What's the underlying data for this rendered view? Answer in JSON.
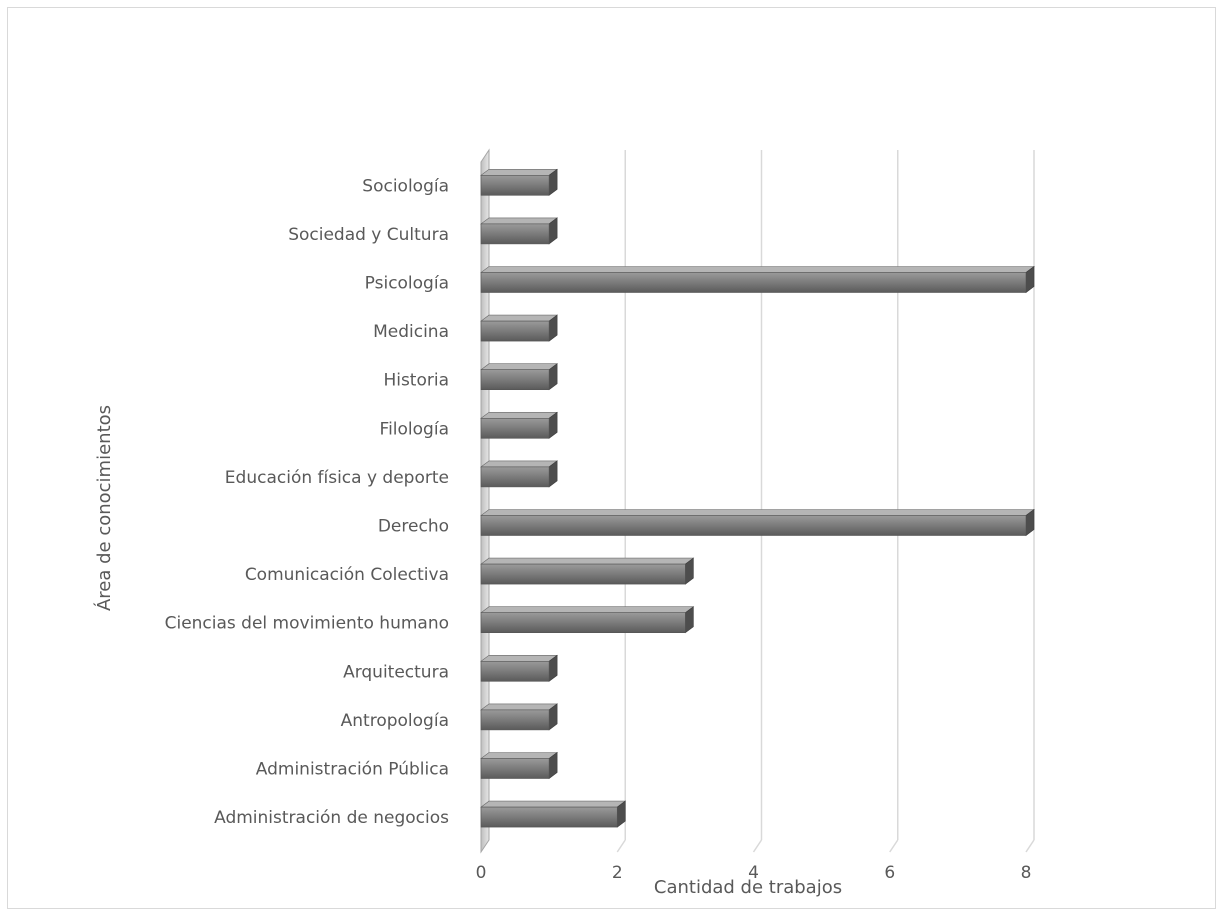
{
  "chart_data": {
    "type": "bar",
    "orientation": "horizontal",
    "style": "3d",
    "categories": [
      "Administración de negocios",
      "Administración Pública",
      "Antropología",
      "Arquitectura",
      "Ciencias del movimiento humano",
      "Comunicación Colectiva",
      "Derecho",
      "Educación física y deporte",
      "Filología",
      "Historia",
      "Medicina",
      "Psicología",
      "Sociedad y Cultura",
      "Sociología"
    ],
    "values": [
      2,
      1,
      1,
      1,
      3,
      3,
      8,
      1,
      1,
      1,
      1,
      8,
      1,
      1
    ],
    "xlabel": "Cantidad de trabajos",
    "ylabel": "Área de conocimientos",
    "xlim": [
      0,
      8
    ],
    "xticks": [
      "0",
      "2",
      "4",
      "6",
      "8"
    ],
    "grid": true,
    "colors": {
      "bar": "#7a7a7a",
      "grid": "#d9d9d9",
      "text": "#595959"
    }
  }
}
